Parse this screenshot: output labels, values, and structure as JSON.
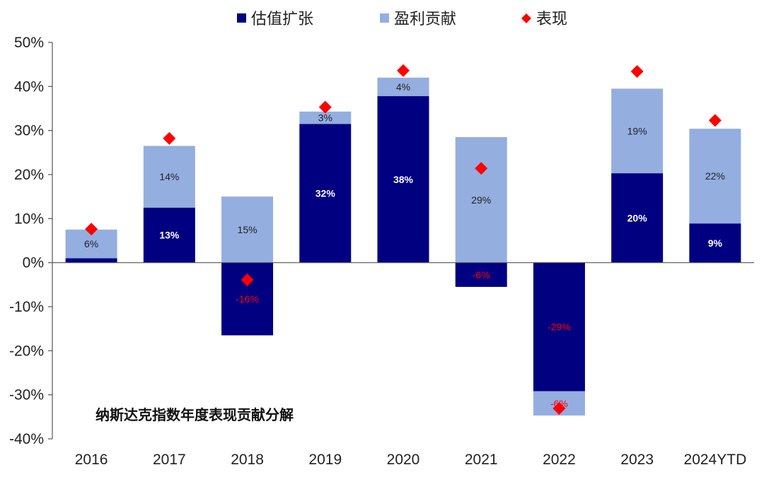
{
  "chart_data": {
    "type": "bar",
    "stacked": true,
    "title": "",
    "annotation": "纳斯达克指数年度表现贡献分解",
    "xlabel": "",
    "ylabel": "",
    "ylim": [
      -0.4,
      0.5
    ],
    "yticks": [
      0.5,
      0.4,
      0.3,
      0.2,
      0.1,
      0.0,
      -0.1,
      -0.2,
      -0.3,
      -0.4
    ],
    "ytick_labels": [
      "50%",
      "40%",
      "30%",
      "20%",
      "10%",
      "0%",
      "-10%",
      "-20%",
      "-30%",
      "-40%"
    ],
    "grid": false,
    "legend_position": "top",
    "categories": [
      "2016",
      "2017",
      "2018",
      "2019",
      "2020",
      "2021",
      "2022",
      "2023",
      "2024YTD"
    ],
    "series": [
      {
        "name": "估值扩张",
        "kind": "bar",
        "color": "#000080",
        "values": [
          0.01,
          0.125,
          -0.165,
          0.315,
          0.378,
          -0.055,
          -0.292,
          0.203,
          0.089
        ],
        "labels": [
          "",
          "13%",
          "-16%",
          "32%",
          "38%",
          "-6%",
          "-29%",
          "20%",
          "9%"
        ]
      },
      {
        "name": "盈利贡献",
        "kind": "bar",
        "color": "#94aee0",
        "values": [
          0.065,
          0.14,
          0.15,
          0.028,
          0.042,
          0.285,
          -0.055,
          0.192,
          0.215
        ],
        "labels": [
          "6%",
          "14%",
          "15%",
          "3%",
          "4%",
          "29%",
          "-6%",
          "19%",
          "22%"
        ]
      },
      {
        "name": "表现",
        "kind": "marker",
        "marker": "diamond",
        "color": "#ff0000",
        "values": [
          0.076,
          0.282,
          -0.039,
          0.353,
          0.436,
          0.214,
          -0.331,
          0.434,
          0.323
        ]
      }
    ]
  }
}
